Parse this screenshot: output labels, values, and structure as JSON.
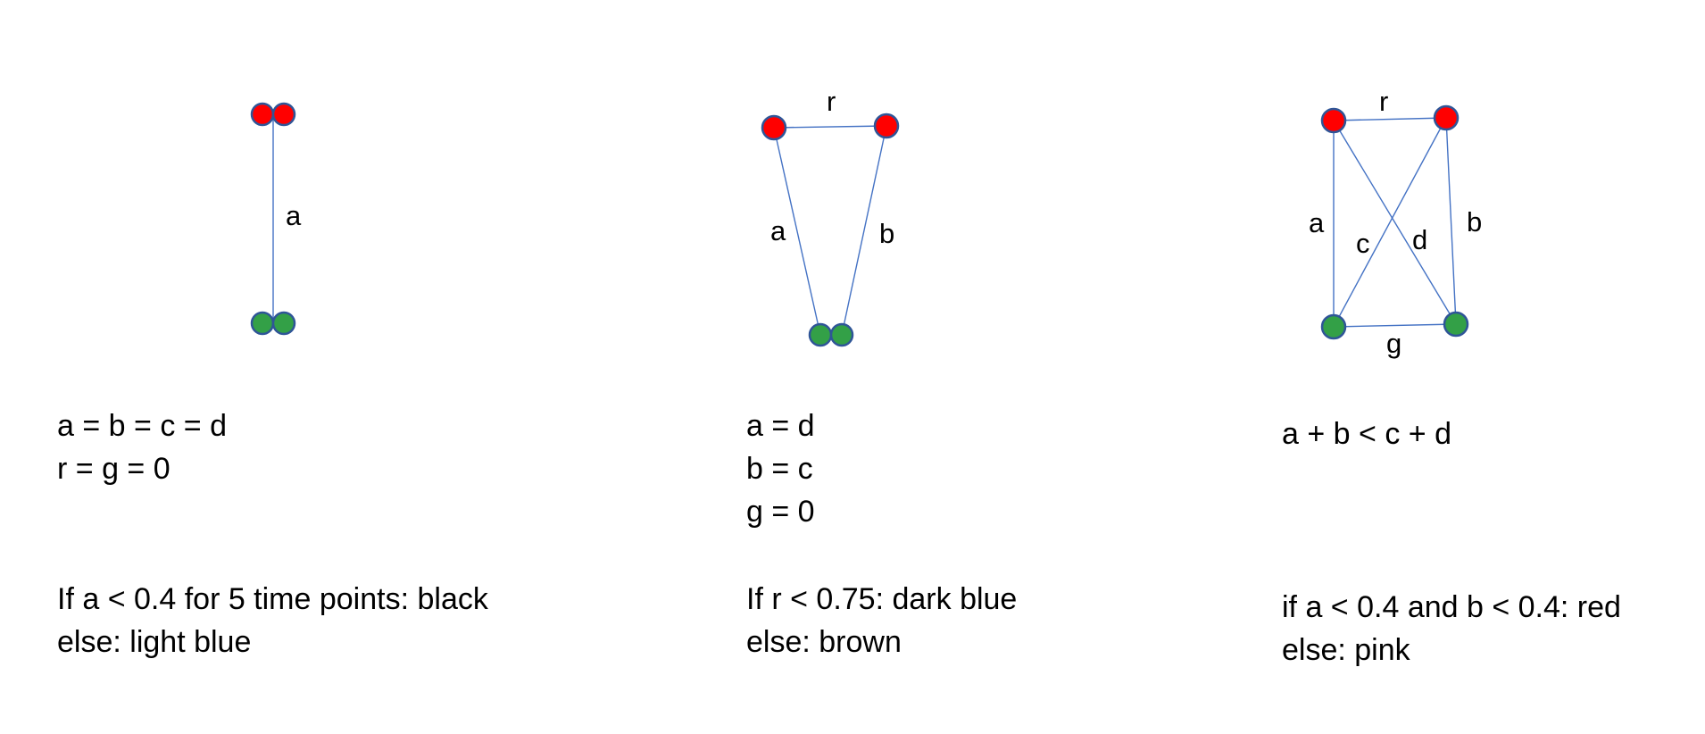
{
  "panels": [
    {
      "edge_labels": {
        "a": "a"
      },
      "conditions": [
        "a = b = c = d",
        "r = g = 0"
      ],
      "rule": [
        "If a < 0.4 for 5 time points: black",
        "else: light blue"
      ]
    },
    {
      "edge_labels": {
        "r": "r",
        "a": "a",
        "b": "b"
      },
      "conditions": [
        "a = d",
        "b = c",
        "g = 0"
      ],
      "rule": [
        "If r < 0.75: dark blue",
        "else: brown"
      ]
    },
    {
      "edge_labels": {
        "r": "r",
        "a": "a",
        "b": "b",
        "c": "c",
        "d": "d",
        "g": "g"
      },
      "conditions": [
        "a + b < c + d"
      ],
      "rule": [
        "if a < 0.4 and b < 0.4: red",
        "else: pink"
      ]
    }
  ],
  "colors": {
    "edge": "#4472C4",
    "node_red": "#FF0000",
    "node_green": "#33A047",
    "node_outline": "#2F5597"
  }
}
